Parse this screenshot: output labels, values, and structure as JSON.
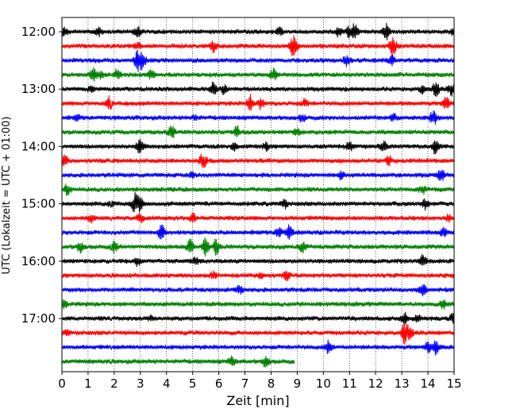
{
  "chart_data": {
    "type": "line",
    "subtype": "helicorder (seismogram traces, one line per 15-minute window)",
    "xlabel": "Zeit  [min]",
    "ylabel": "UTC (Lokalzeit = UTC + 01:00)",
    "xlim": [
      0,
      15
    ],
    "x_ticks": [
      "0",
      "1",
      "2",
      "3",
      "4",
      "5",
      "6",
      "7",
      "8",
      "9",
      "10",
      "11",
      "12",
      "13",
      "14",
      "15"
    ],
    "y_ticks": [
      "12:00",
      "13:00",
      "14:00",
      "15:00",
      "16:00",
      "17:00"
    ],
    "vertical_grid": true,
    "grid_style": "dotted",
    "trace_colors": [
      "#000000",
      "#ff0000",
      "#0000ff",
      "#008000"
    ],
    "traces": [
      {
        "start": "12:00",
        "end_min": 15,
        "events": [
          [
            0.1,
            0.4
          ],
          [
            1.4,
            0.4
          ],
          [
            2.9,
            0.5
          ],
          [
            8.3,
            0.5
          ],
          [
            10.6,
            0.6
          ],
          [
            11.0,
            0.6
          ],
          [
            11.2,
            0.8
          ],
          [
            12.4,
            1.0
          ],
          [
            15.0,
            0.5
          ]
        ]
      },
      {
        "start": "12:15",
        "end_min": 15,
        "events": [
          [
            2.9,
            0.4
          ],
          [
            5.8,
            0.7
          ],
          [
            8.8,
            0.6
          ],
          [
            8.9,
            0.8
          ],
          [
            12.6,
            0.8
          ],
          [
            12.7,
            0.6
          ]
        ]
      },
      {
        "start": "12:30",
        "end_min": 15,
        "events": [
          [
            2.9,
            1.2
          ],
          [
            3.1,
            0.8
          ],
          [
            10.9,
            0.6
          ],
          [
            12.6,
            0.6
          ]
        ]
      },
      {
        "start": "12:45",
        "end_min": 15,
        "events": [
          [
            1.2,
            0.8
          ],
          [
            1.5,
            0.5
          ],
          [
            2.1,
            0.6
          ],
          [
            3.4,
            0.5
          ],
          [
            8.1,
            0.8
          ]
        ]
      },
      {
        "start": "13:00",
        "end_min": 15,
        "events": [
          [
            1.1,
            0.3
          ],
          [
            5.8,
            0.8
          ],
          [
            6.2,
            0.5
          ],
          [
            13.8,
            0.5
          ],
          [
            14.3,
            0.8
          ],
          [
            14.9,
            0.7
          ]
        ]
      },
      {
        "start": "13:15",
        "end_min": 15,
        "events": [
          [
            1.8,
            0.7
          ],
          [
            7.2,
            1.0
          ],
          [
            7.6,
            0.6
          ],
          [
            9.3,
            0.4
          ],
          [
            14.7,
            0.8
          ]
        ]
      },
      {
        "start": "13:30",
        "end_min": 15,
        "events": [
          [
            0.6,
            0.3
          ],
          [
            5.1,
            0.3
          ],
          [
            9.2,
            0.4
          ],
          [
            12.7,
            0.4
          ],
          [
            14.2,
            0.9
          ]
        ]
      },
      {
        "start": "13:45",
        "end_min": 15,
        "events": [
          [
            4.2,
            0.8
          ],
          [
            6.7,
            0.7
          ],
          [
            9.0,
            0.4
          ]
        ]
      },
      {
        "start": "14:00",
        "end_min": 15,
        "events": [
          [
            3.0,
            1.0
          ],
          [
            6.6,
            0.5
          ],
          [
            7.8,
            0.4
          ],
          [
            11.0,
            0.6
          ],
          [
            12.3,
            0.7
          ],
          [
            14.3,
            1.0
          ]
        ]
      },
      {
        "start": "14:15",
        "end_min": 15,
        "events": [
          [
            0.1,
            0.6
          ],
          [
            5.4,
            1.0
          ],
          [
            12.5,
            0.5
          ]
        ]
      },
      {
        "start": "14:30",
        "end_min": 15,
        "events": [
          [
            5.0,
            0.3
          ],
          [
            10.7,
            0.6
          ],
          [
            14.5,
            0.8
          ]
        ]
      },
      {
        "start": "14:45",
        "end_min": 15,
        "events": [
          [
            0.2,
            0.6
          ],
          [
            13.8,
            0.5
          ]
        ]
      },
      {
        "start": "15:00",
        "end_min": 15,
        "events": [
          [
            1.9,
            0.4
          ],
          [
            2.8,
            1.2
          ],
          [
            3.0,
            0.7
          ],
          [
            8.5,
            0.5
          ],
          [
            13.9,
            0.6
          ]
        ]
      },
      {
        "start": "15:15",
        "end_min": 15,
        "events": [
          [
            1.1,
            0.4
          ],
          [
            3.0,
            0.6
          ],
          [
            5.0,
            0.5
          ],
          [
            14.8,
            0.4
          ]
        ]
      },
      {
        "start": "15:30",
        "end_min": 15,
        "events": [
          [
            3.8,
            1.2
          ],
          [
            8.3,
            0.6
          ],
          [
            8.7,
            0.8
          ],
          [
            14.6,
            0.5
          ]
        ]
      },
      {
        "start": "15:45",
        "end_min": 15,
        "events": [
          [
            0.7,
            0.6
          ],
          [
            2.0,
            0.6
          ],
          [
            4.9,
            0.9
          ],
          [
            5.5,
            1.1
          ],
          [
            5.9,
            0.9
          ],
          [
            9.2,
            0.6
          ]
        ]
      },
      {
        "start": "16:00",
        "end_min": 15,
        "events": [
          [
            2.9,
            0.5
          ],
          [
            5.1,
            0.5
          ],
          [
            13.8,
            0.8
          ]
        ]
      },
      {
        "start": "16:15",
        "end_min": 15,
        "events": [
          [
            5.8,
            0.4
          ],
          [
            7.6,
            0.3
          ],
          [
            8.6,
            0.5
          ]
        ]
      },
      {
        "start": "16:30",
        "end_min": 15,
        "events": [
          [
            6.8,
            0.5
          ],
          [
            13.8,
            0.8
          ]
        ]
      },
      {
        "start": "16:45",
        "end_min": 15,
        "events": [
          [
            0.1,
            0.6
          ],
          [
            14.6,
            0.6
          ]
        ]
      },
      {
        "start": "17:00",
        "end_min": 15,
        "events": [
          [
            3.4,
            0.3
          ],
          [
            13.1,
            0.7
          ],
          [
            13.6,
            0.5
          ],
          [
            15.0,
            0.8
          ]
        ]
      },
      {
        "start": "17:15",
        "end_min": 15,
        "events": [
          [
            0.2,
            0.3
          ],
          [
            13.1,
            1.3
          ],
          [
            13.3,
            0.6
          ]
        ]
      },
      {
        "start": "17:30",
        "end_min": 15,
        "events": [
          [
            10.2,
            0.8
          ],
          [
            14.0,
            0.6
          ],
          [
            14.3,
            0.7
          ]
        ]
      },
      {
        "start": "17:45",
        "end_min": 8.9,
        "events": [
          [
            6.5,
            0.5
          ],
          [
            7.8,
            0.6
          ]
        ]
      }
    ]
  }
}
